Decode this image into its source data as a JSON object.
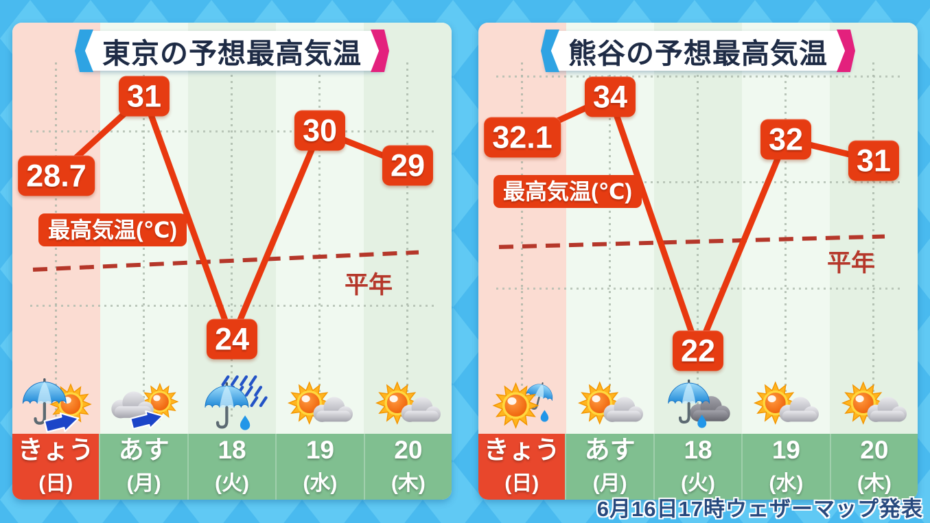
{
  "attribution": "6月16日17時ウェザーマップ発表",
  "labels": {
    "axis_label": "最高気温(℃)",
    "normal_label": "平年"
  },
  "days": [
    {
      "label": "きょう",
      "sub": "(日)",
      "today": true
    },
    {
      "label": "あす",
      "sub": "(月)",
      "today": false
    },
    {
      "label": "18",
      "sub": "(火)",
      "today": false
    },
    {
      "label": "19",
      "sub": "(水)",
      "today": false
    },
    {
      "label": "20",
      "sub": "(木)",
      "today": false
    }
  ],
  "colors": {
    "accent_red": "#e63c12",
    "normal_line_red": "#b5372a",
    "title_text_navy": "#1e2b45",
    "title_bracket_left_blue": "#2ea3e3",
    "title_bracket_right_pink": "#e3217d",
    "today_day_cell_red": "#e8472c",
    "day_cell_green": "#80bf90",
    "today_column_pink": "#fbdcd2",
    "background_blue": "#49baef"
  },
  "chart_data": [
    {
      "type": "line",
      "title": "東京の予想最高気温",
      "city": "東京",
      "categories": [
        "きょう(日)",
        "あす(月)",
        "18(火)",
        "19(水)",
        "20(木)"
      ],
      "values": [
        28.7,
        31,
        24,
        30,
        29
      ],
      "ylabel": "最高気温(℃)",
      "ylim": [
        23.0,
        33.1
      ],
      "normal_line": {
        "label": "平年",
        "start": 26.0,
        "end": 26.5
      },
      "grid": "dotted; vertical line at each day center, horizontal every 5°C",
      "legend": "none",
      "icons": [
        "rain-then-sun",
        "cloud-then-sun",
        "rain",
        "sun-cloud",
        "sun-cloud"
      ]
    },
    {
      "type": "line",
      "title": "熊谷の予想最高気温",
      "city": "熊谷",
      "categories": [
        "きょう(日)",
        "あす(月)",
        "18(火)",
        "19(水)",
        "20(木)"
      ],
      "values": [
        32.1,
        34,
        22,
        32,
        31
      ],
      "ylabel": "最高気温(℃)",
      "ylim": [
        20.9,
        37.5
      ],
      "normal_line": {
        "label": "平年",
        "start": 26.9,
        "end": 27.4
      },
      "grid": "dotted; vertical line at each day center, horizontal every 5°C",
      "legend": "none",
      "icons": [
        "sun-then-rain",
        "sun-cloud",
        "rain-cloud",
        "sun-cloud",
        "sun-cloud"
      ]
    }
  ]
}
